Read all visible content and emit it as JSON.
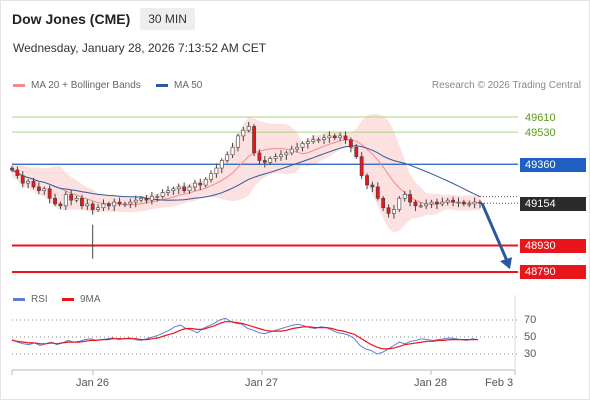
{
  "header": {
    "title": "Dow Jones (CME)",
    "timeframe": "30 MIN"
  },
  "datetime": "Wednesday, January 28, 2026 7:13:52 AM CET",
  "legend": [
    {
      "label": "MA 20 + Bollinger Bands",
      "color": "#f08c8c"
    },
    {
      "label": "MA 50",
      "color": "#2f5a9e"
    }
  ],
  "copyright": "Research © 2026 Trading Central",
  "price_levels": [
    {
      "value": "49610",
      "style": "resistance-thin",
      "color": "#8cc152"
    },
    {
      "value": "49530",
      "style": "resistance-thin",
      "color": "#8cc152"
    },
    {
      "value": "49360",
      "style": "pivot",
      "color": "#1f5fc4"
    },
    {
      "value": "49154",
      "style": "last-price",
      "color": "#2b2b2b"
    },
    {
      "value": "48930",
      "style": "support",
      "color": "#e8161b"
    },
    {
      "value": "48790",
      "style": "support",
      "color": "#e8161b"
    }
  ],
  "rsi_legend": [
    {
      "label": "RSI",
      "color": "#5b7fd6"
    },
    {
      "label": "9MA",
      "color": "#e8161b"
    }
  ],
  "rsi_levels": [
    "70",
    "50",
    "30"
  ],
  "x_ticks": [
    "Jan 26",
    "Jan 27",
    "Jan 28",
    "Feb 3"
  ],
  "forecast_arrow": {
    "direction": "down",
    "color": "#2a5a9e"
  },
  "chart_data": {
    "type": "candlestick",
    "title": "Dow Jones (CME)",
    "timeframe": "30 MIN",
    "y_range": [
      48760,
      49720
    ],
    "horizontal_levels": [
      49610,
      49530,
      49360,
      49154,
      48930,
      48790
    ],
    "last_price": 49154,
    "close_series": [
      49330,
      49300,
      49260,
      49270,
      49240,
      49220,
      49230,
      49180,
      49150,
      49140,
      49200,
      49170,
      49180,
      49140,
      49150,
      49120,
      49130,
      49150,
      49140,
      49160,
      49150,
      49150,
      49160,
      49170,
      49180,
      49170,
      49190,
      49190,
      49210,
      49220,
      49230,
      49240,
      49220,
      49240,
      49260,
      49250,
      49280,
      49310,
      49340,
      49380,
      49410,
      49450,
      49510,
      49540,
      49560,
      49420,
      49380,
      49370,
      49390,
      49400,
      49410,
      49420,
      49440,
      49450,
      49470,
      49480,
      49490,
      49490,
      49500,
      49510,
      49500,
      49510,
      49490,
      49450,
      49400,
      49300,
      49250,
      49240,
      49180,
      49130,
      49100,
      49120,
      49180,
      49200,
      49160,
      49140,
      49140,
      49150,
      49160,
      49150,
      49160,
      49170,
      49160,
      49160,
      49150,
      49150,
      49160,
      49154
    ],
    "rsi": [
      47,
      44,
      42,
      41,
      43,
      40,
      42,
      44,
      41,
      43,
      46,
      44,
      45,
      47,
      48,
      46,
      47,
      48,
      49,
      47,
      48,
      49,
      47,
      46,
      48,
      50,
      52,
      55,
      58,
      62,
      64,
      60,
      58,
      55,
      60,
      63,
      66,
      70,
      72,
      68,
      66,
      65,
      60,
      58,
      55,
      54,
      56,
      58,
      60,
      62,
      64,
      65,
      63,
      61,
      60,
      62,
      61,
      58,
      55,
      54,
      52,
      48,
      40,
      36,
      34,
      30,
      32,
      36,
      40,
      44,
      42,
      45,
      46,
      48,
      47,
      46,
      47,
      48,
      49,
      48,
      47,
      46,
      48,
      47
    ],
    "rsi_ma": [
      46,
      45,
      44,
      43,
      43,
      42,
      42,
      43,
      42,
      43,
      44,
      44,
      44,
      45,
      46,
      46,
      47,
      47,
      48,
      48,
      48,
      48,
      48,
      47,
      47,
      48,
      49,
      51,
      53,
      55,
      58,
      60,
      60,
      59,
      59,
      61,
      63,
      66,
      68,
      68,
      67,
      66,
      64,
      62,
      60,
      58,
      57,
      57,
      57,
      58,
      60,
      61,
      62,
      62,
      61,
      61,
      61,
      60,
      58,
      57,
      55,
      53,
      49,
      45,
      41,
      38,
      36,
      36,
      37,
      39,
      41,
      42,
      43,
      44,
      45,
      45,
      46,
      46,
      47,
      47,
      47,
      47,
      47,
      47
    ],
    "rsi_range": [
      10,
      90
    ],
    "x_ticks": [
      "Jan 26",
      "Jan 27",
      "Jan 28",
      "Feb 3"
    ],
    "indicators": [
      "MA 20 + Bollinger Bands",
      "MA 50"
    ],
    "forecast": "down"
  }
}
